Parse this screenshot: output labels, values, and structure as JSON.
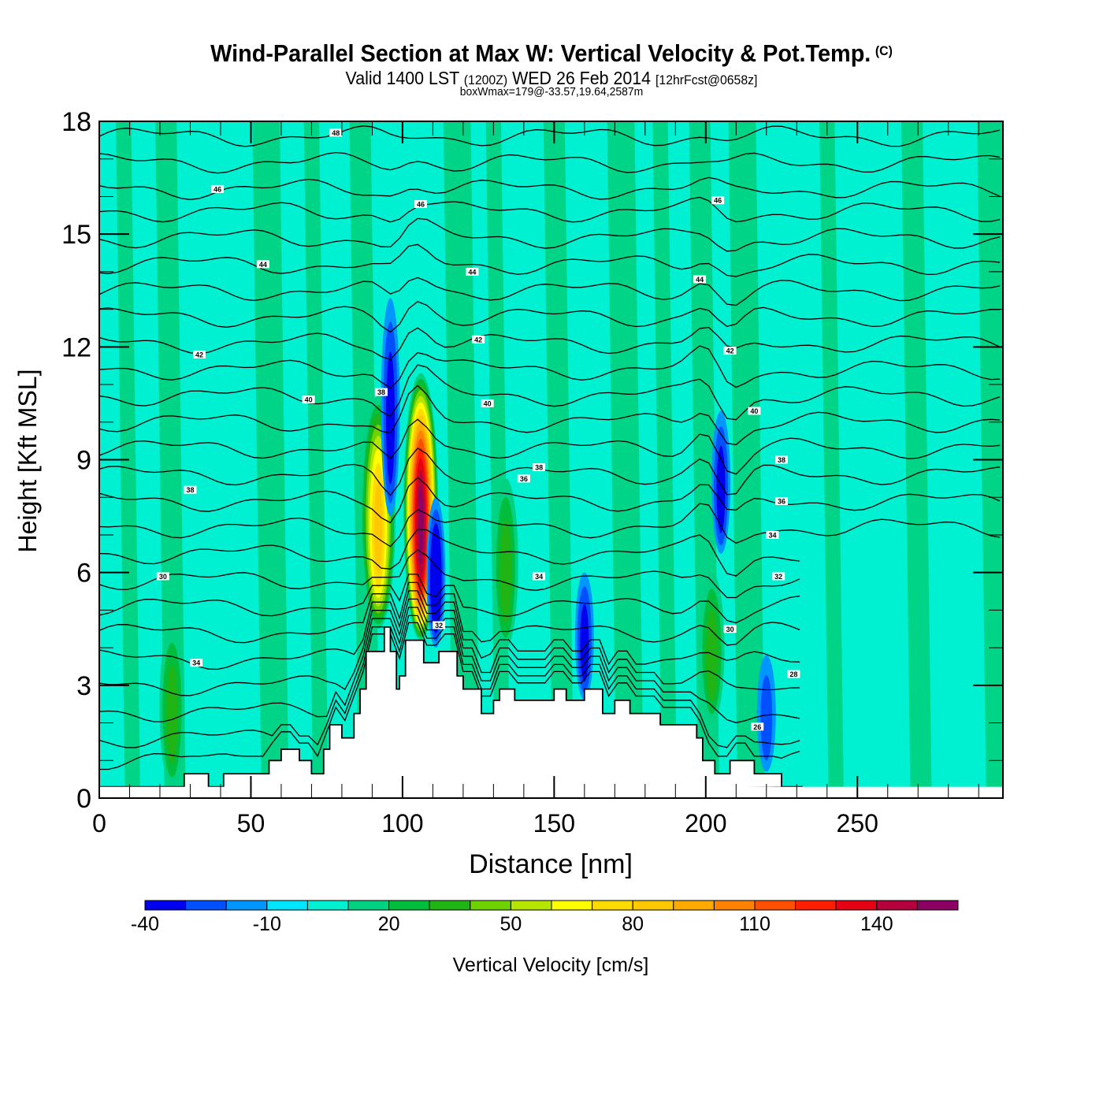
{
  "header": {
    "title": "Wind-Parallel Section at Max W: Vertical Velocity & Pot.Temp.",
    "copyright": "(C)",
    "valid_prefix": "Valid 1400 LST",
    "valid_utc": "(1200Z)",
    "valid_date": "WED 26 Feb 2014",
    "forecast": "[12hrFcst@0658z]",
    "boxwmax": "boxWmax=179@-33.57,19.64,2587m"
  },
  "chart_data": {
    "type": "heatmap",
    "title": "Wind-Parallel Section at Max W: Vertical Velocity & Pot.Temp.",
    "xlabel": "Distance [nm]",
    "ylabel": "Height [Kft MSL]",
    "xlim": [
      0,
      298
    ],
    "ylim": [
      0,
      18
    ],
    "xticks": [
      0,
      50,
      100,
      150,
      200,
      250
    ],
    "xtick_labels": [
      "0",
      "50",
      "100",
      "150",
      "200",
      "250"
    ],
    "yticks": [
      0,
      3,
      6,
      9,
      12,
      15,
      18
    ],
    "ytick_labels": [
      "0",
      "3",
      "6",
      "9",
      "12",
      "15",
      "18"
    ],
    "colorbar": {
      "label": "Vertical Velocity [cm/s]",
      "min": -40,
      "step": 10,
      "tick_labels": [
        "-40",
        "-10",
        "20",
        "50",
        "80",
        "110",
        "140"
      ],
      "tick_values": [
        -40,
        -10,
        20,
        50,
        80,
        110,
        140
      ],
      "colors": [
        "#0000f0",
        "#0050ff",
        "#0096ff",
        "#00e6ff",
        "#00f0d2",
        "#00d282",
        "#00be3c",
        "#20b414",
        "#6ed200",
        "#b4e600",
        "#ffff00",
        "#ffdc00",
        "#ffc800",
        "#ffaa00",
        "#ff8200",
        "#ff5000",
        "#ff1e00",
        "#e60014",
        "#b4003c",
        "#8c0064"
      ]
    },
    "background_value": 0,
    "w_features": [
      {
        "kind": "updraft",
        "x": 92,
        "z_bottom": 4.5,
        "z_top": 10.7,
        "peak": 85
      },
      {
        "kind": "updraft",
        "x": 106,
        "z_bottom": 4.2,
        "z_top": 11.3,
        "peak": 150
      },
      {
        "kind": "updraft",
        "x": 134,
        "z_bottom": 4.0,
        "z_top": 8.5,
        "peak": 35
      },
      {
        "kind": "updraft",
        "x": 24,
        "z_bottom": 0.3,
        "z_top": 4.6,
        "peak": 30
      },
      {
        "kind": "updraft",
        "x": 202,
        "z_bottom": 2.0,
        "z_top": 6.0,
        "peak": 35
      },
      {
        "kind": "downdraft",
        "x": 96,
        "z_bottom": 7.5,
        "z_top": 13.3,
        "peak": -30
      },
      {
        "kind": "downdraft",
        "x": 111,
        "z_bottom": 4.0,
        "z_top": 8.0,
        "peak": -40
      },
      {
        "kind": "downdraft",
        "x": 205,
        "z_bottom": 6.5,
        "z_top": 10.3,
        "peak": -30
      },
      {
        "kind": "downdraft",
        "x": 160,
        "z_bottom": 2.6,
        "z_top": 6.0,
        "peak": -30
      },
      {
        "kind": "downdraft",
        "x": 220,
        "z_bottom": 0.7,
        "z_top": 3.8,
        "peak": -20
      }
    ],
    "terrain": {
      "x": [
        0,
        28,
        28,
        36,
        36,
        41,
        41,
        48,
        48,
        56,
        56,
        60,
        60,
        66,
        66,
        70,
        70,
        74,
        74,
        76,
        76,
        80,
        80,
        84,
        84,
        86,
        86,
        88,
        88,
        94,
        94,
        96,
        96,
        98,
        98,
        99,
        99,
        101,
        101,
        107,
        107,
        112,
        112,
        118,
        118,
        120,
        120,
        126,
        126,
        130,
        130,
        132,
        132,
        137,
        137,
        150,
        150,
        154,
        154,
        160,
        160,
        166,
        166,
        170,
        170,
        175,
        175,
        179,
        179,
        185,
        185,
        197,
        197,
        199,
        199,
        203,
        203,
        208,
        208,
        216,
        216,
        225,
        225,
        232,
        232,
        298
      ],
      "z": [
        0.3,
        0.3,
        0.65,
        0.65,
        0.3,
        0.3,
        0.65,
        0.65,
        0.65,
        0.65,
        1.0,
        1.0,
        1.3,
        1.3,
        1.0,
        1.0,
        0.65,
        0.65,
        1.3,
        1.3,
        1.95,
        1.95,
        1.6,
        1.6,
        2.25,
        2.25,
        2.9,
        2.9,
        3.9,
        3.9,
        4.55,
        4.55,
        3.9,
        3.9,
        2.9,
        2.9,
        3.25,
        3.25,
        4.2,
        4.2,
        3.6,
        3.6,
        3.9,
        3.9,
        3.25,
        3.25,
        2.9,
        2.9,
        2.25,
        2.25,
        2.6,
        2.6,
        2.9,
        2.9,
        2.6,
        2.6,
        2.9,
        2.9,
        2.6,
        2.6,
        2.9,
        2.9,
        2.25,
        2.25,
        2.6,
        2.6,
        2.25,
        2.25,
        2.25,
        2.25,
        1.95,
        1.95,
        1.6,
        1.6,
        1.0,
        1.0,
        0.65,
        0.65,
        1.0,
        1.0,
        0.65,
        0.65,
        0.3,
        0.3
      ],
      "color": "#ffffff"
    },
    "theta_contours": {
      "interval_k": 1,
      "labels": [
        "48",
        "46",
        "44",
        "42",
        "40",
        "38",
        "36",
        "34",
        "32",
        "30",
        "28"
      ],
      "levels": [
        17.6,
        16.9,
        16.2,
        15.6,
        14.9,
        14.2,
        13.5,
        12.8,
        12.1,
        11.4,
        10.7,
        10.0,
        9.3,
        8.6,
        7.9,
        7.2,
        6.5,
        5.8,
        5.1,
        4.4,
        3.7,
        3.0,
        2.3,
        1.6,
        1.0
      ]
    },
    "contour_label_marks": [
      {
        "text": "48",
        "x": 78,
        "z": 17.7
      },
      {
        "text": "46",
        "x": 39,
        "z": 16.2
      },
      {
        "text": "46",
        "x": 106,
        "z": 15.8
      },
      {
        "text": "46",
        "x": 204,
        "z": 15.9
      },
      {
        "text": "44",
        "x": 54,
        "z": 14.2
      },
      {
        "text": "44",
        "x": 123,
        "z": 14.0
      },
      {
        "text": "44",
        "x": 198,
        "z": 13.8
      },
      {
        "text": "42",
        "x": 33,
        "z": 11.8
      },
      {
        "text": "42",
        "x": 125,
        "z": 12.2
      },
      {
        "text": "42",
        "x": 208,
        "z": 11.9
      },
      {
        "text": "40",
        "x": 69,
        "z": 10.6
      },
      {
        "text": "40",
        "x": 128,
        "z": 10.5
      },
      {
        "text": "40",
        "x": 216,
        "z": 10.3
      },
      {
        "text": "38",
        "x": 93,
        "z": 10.8
      },
      {
        "text": "38",
        "x": 30,
        "z": 8.2
      },
      {
        "text": "38",
        "x": 145,
        "z": 8.8
      },
      {
        "text": "38",
        "x": 225,
        "z": 9.0
      },
      {
        "text": "36",
        "x": 140,
        "z": 8.5
      },
      {
        "text": "36",
        "x": 225,
        "z": 7.9
      },
      {
        "text": "34",
        "x": 222,
        "z": 7.0
      },
      {
        "text": "34",
        "x": 145,
        "z": 5.9
      },
      {
        "text": "34",
        "x": 32,
        "z": 3.6
      },
      {
        "text": "32",
        "x": 224,
        "z": 5.9
      },
      {
        "text": "32",
        "x": 112,
        "z": 4.6
      },
      {
        "text": "30",
        "x": 21,
        "z": 5.9
      },
      {
        "text": "30",
        "x": 208,
        "z": 4.5
      },
      {
        "text": "28",
        "x": 229,
        "z": 3.3
      },
      {
        "text": "26",
        "x": 217,
        "z": 1.9
      }
    ]
  }
}
